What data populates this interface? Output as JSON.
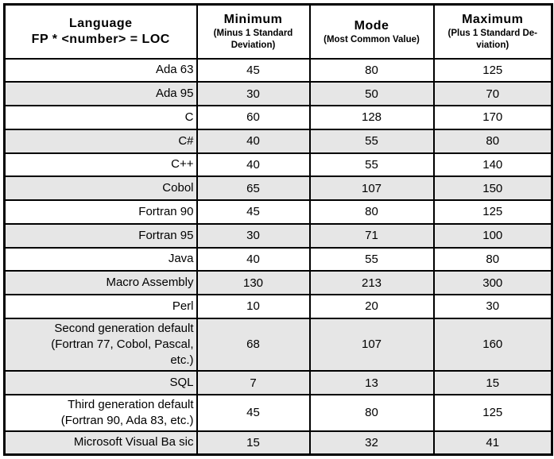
{
  "colors": {
    "row_shade": "#e6e6e6",
    "border": "#000000",
    "background": "#ffffff",
    "text": "#000000"
  },
  "table": {
    "header": {
      "language_title": "Language",
      "language_subtitle": "FP * <number> = LOC",
      "columns": [
        {
          "title": "Minimum",
          "subtitle": "(Minus 1 Standard\nDeviation)"
        },
        {
          "title": "Mode",
          "subtitle": "(Most Common Value)"
        },
        {
          "title": "Maximum",
          "subtitle": "(Plus 1 Standard De-\nviation)"
        }
      ]
    },
    "rows": [
      {
        "language": "Ada 63",
        "minimum": "45",
        "mode": "80",
        "maximum": "125",
        "shaded": false
      },
      {
        "language": "Ada 95",
        "minimum": "30",
        "mode": "50",
        "maximum": "70",
        "shaded": true
      },
      {
        "language": "C",
        "minimum": "60",
        "mode": "128",
        "maximum": "170",
        "shaded": false
      },
      {
        "language": "C#",
        "minimum": "40",
        "mode": "55",
        "maximum": "80",
        "shaded": true
      },
      {
        "language": "C++",
        "minimum": "40",
        "mode": "55",
        "maximum": "140",
        "shaded": false
      },
      {
        "language": "Cobol",
        "minimum": "65",
        "mode": "107",
        "maximum": "150",
        "shaded": true
      },
      {
        "language": "Fortran 90",
        "minimum": "45",
        "mode": "80",
        "maximum": "125",
        "shaded": false
      },
      {
        "language": "Fortran 95",
        "minimum": "30",
        "mode": "71",
        "maximum": "100",
        "shaded": true
      },
      {
        "language": "Java",
        "minimum": "40",
        "mode": "55",
        "maximum": "80",
        "shaded": false
      },
      {
        "language": "Macro Assembly",
        "minimum": "130",
        "mode": "213",
        "maximum": "300",
        "shaded": true
      },
      {
        "language": "Perl",
        "minimum": "10",
        "mode": "20",
        "maximum": "30",
        "shaded": false
      },
      {
        "language": "Second generation default\n(Fortran 77, Cobol, Pascal,\netc.)",
        "minimum": "68",
        "mode": "107",
        "maximum": "160",
        "shaded": true
      },
      {
        "language": "SQL",
        "minimum": "7",
        "mode": "13",
        "maximum": "15",
        "shaded": true
      },
      {
        "language": "Third generation default\n(Fortran 90, Ada 83, etc.)",
        "minimum": "45",
        "mode": "80",
        "maximum": "125",
        "shaded": false
      },
      {
        "language": "Microsoft Visual Ba sic",
        "minimum": "15",
        "mode": "32",
        "maximum": "41",
        "shaded": true
      }
    ]
  }
}
